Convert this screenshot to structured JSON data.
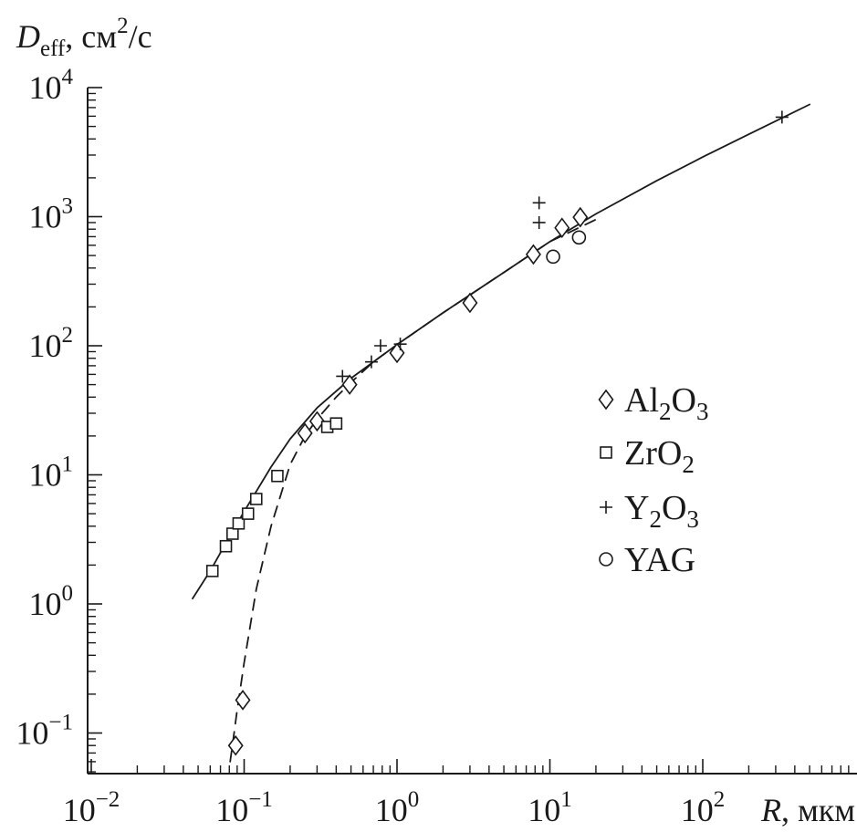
{
  "chart_data": {
    "type": "scatter",
    "title": "",
    "xlabel": {
      "symbol": "R",
      "unit": ", мкм"
    },
    "ylabel": {
      "symbol": "D",
      "subscript": "eff",
      "unit_before_sup": ", см",
      "sup": "2",
      "unit_after_sup": "/с"
    },
    "x_scale": "log",
    "y_scale": "log",
    "xlim": [
      0.01,
      500
    ],
    "ylim": [
      0.05,
      10000
    ],
    "grid": false,
    "legend_position": "right",
    "x_ticks": [
      {
        "base": "10",
        "exp": "−2",
        "value": 0.01
      },
      {
        "base": "10",
        "exp": "−1",
        "value": 0.1
      },
      {
        "base": "10",
        "exp": "0",
        "value": 1
      },
      {
        "base": "10",
        "exp": "1",
        "value": 10
      },
      {
        "base": "10",
        "exp": "2",
        "value": 100
      }
    ],
    "y_ticks": [
      {
        "base": "10",
        "exp": "−1",
        "value": 0.1
      },
      {
        "base": "10",
        "exp": "0",
        "value": 1
      },
      {
        "base": "10",
        "exp": "1",
        "value": 10
      },
      {
        "base": "10",
        "exp": "2",
        "value": 100
      },
      {
        "base": "10",
        "exp": "3",
        "value": 1000
      },
      {
        "base": "10",
        "exp": "4",
        "value": 10000
      }
    ],
    "series": [
      {
        "legend": [
          {
            "t": "Al"
          },
          {
            "t": "2",
            "sub": true
          },
          {
            "t": "O"
          },
          {
            "t": "3",
            "sub": true
          }
        ],
        "marker": "diamond",
        "x": [
          0.088,
          0.098,
          0.25,
          0.3,
          0.49,
          1.0,
          3.0,
          7.8,
          12.0,
          15.8
        ],
        "y": [
          0.08,
          0.18,
          21,
          26,
          50,
          88,
          215,
          510,
          820,
          990
        ]
      },
      {
        "legend": [
          {
            "t": "ZrO"
          },
          {
            "t": "2",
            "sub": true
          }
        ],
        "marker": "square",
        "x": [
          0.062,
          0.076,
          0.084,
          0.092,
          0.106,
          0.12,
          0.165,
          0.35,
          0.4
        ],
        "y": [
          1.8,
          2.8,
          3.5,
          4.2,
          5.0,
          6.5,
          9.8,
          23.5,
          25
        ],
        "x_scaleless_note": ""
      },
      {
        "legend": [
          {
            "t": "Y"
          },
          {
            "t": "2",
            "sub": true
          },
          {
            "t": "O"
          },
          {
            "t": "3",
            "sub": true
          }
        ],
        "marker": "plus",
        "x": [
          0.44,
          0.68,
          0.78,
          1.05,
          8.5,
          8.5,
          330
        ],
        "y": [
          58,
          75,
          100,
          103,
          900,
          1280,
          5900
        ]
      },
      {
        "legend": [
          {
            "t": "YAG"
          }
        ],
        "marker": "circle",
        "x": [
          10.5,
          15.5
        ],
        "y": [
          490,
          690
        ]
      }
    ],
    "curves": [
      {
        "style": "solid",
        "x": [
          0.046,
          0.06,
          0.08,
          0.1,
          0.15,
          0.2,
          0.3,
          0.5,
          1,
          2,
          5,
          10,
          20,
          50,
          100,
          200,
          500
        ],
        "y": [
          1.1,
          1.8,
          3.3,
          5.2,
          11.5,
          19,
          33,
          56,
          102,
          180,
          370,
          640,
          1050,
          1900,
          2900,
          4350,
          7400
        ]
      },
      {
        "style": "dashed",
        "x": [
          0.081,
          0.086,
          0.09,
          0.1,
          0.12,
          0.15,
          0.2,
          0.25,
          0.3,
          0.4,
          0.5,
          0.7,
          1,
          2,
          5,
          10,
          20
        ],
        "y": [
          0.06,
          0.1,
          0.15,
          0.35,
          1.3,
          4.0,
          12,
          20,
          27,
          40,
          52,
          75,
          102,
          180,
          370,
          640,
          950
        ]
      }
    ]
  }
}
